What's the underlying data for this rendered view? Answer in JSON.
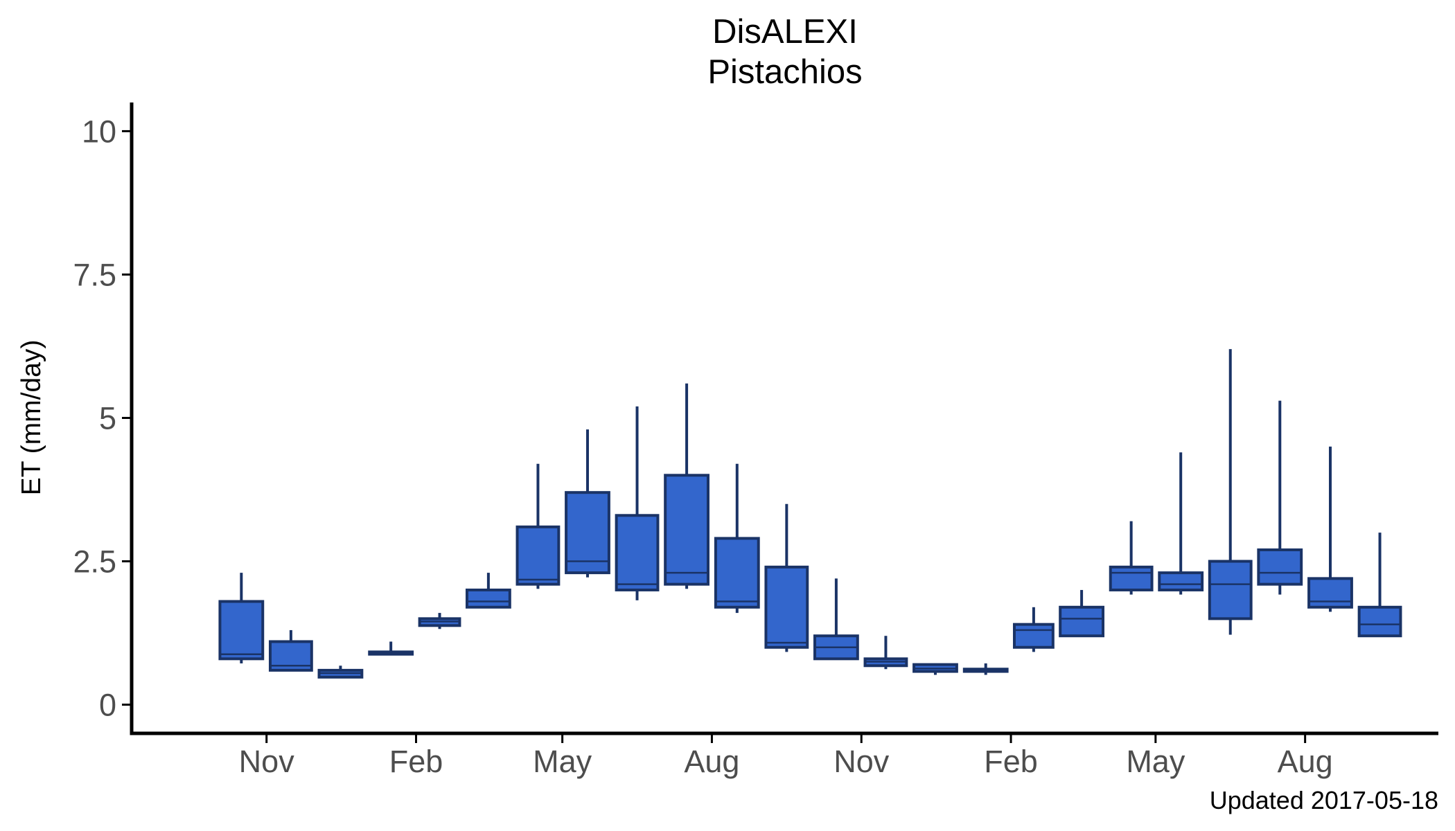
{
  "chart_data": {
    "type": "boxplot",
    "title": "DisALEXI",
    "subtitle": "Pistachios",
    "ylabel": "ET (mm/day)",
    "xlabel": "",
    "caption": "Updated  2017-05-18",
    "ylim": [
      -0.5,
      10.5
    ],
    "yticks": [
      0,
      2.5,
      5,
      7.5,
      10
    ],
    "ytick_labels": [
      "0",
      "2.5",
      "5",
      "7.5",
      "10"
    ],
    "xlim": [
      "2015-08-10",
      "2017-10-22"
    ],
    "xtick_dates": [
      "2015-11-01",
      "2016-02-01",
      "2016-05-01",
      "2016-08-01",
      "2016-11-01",
      "2017-02-01",
      "2017-05-01",
      "2017-08-01"
    ],
    "xtick_labels": [
      "Nov",
      "Feb",
      "May",
      "Aug",
      "Nov",
      "Feb",
      "May",
      "Aug"
    ],
    "grid": false,
    "legend": "none",
    "colors": {
      "fill": "#3366cc",
      "stroke": "#1a3366"
    },
    "boxes": [
      {
        "month": "2015-10",
        "min": 0.72,
        "q1": 0.8,
        "median": 0.88,
        "q3": 1.8,
        "max": 2.3
      },
      {
        "month": "2015-11",
        "min": 0.6,
        "q1": 0.6,
        "median": 0.68,
        "q3": 1.1,
        "max": 1.3
      },
      {
        "month": "2015-12",
        "min": 0.48,
        "q1": 0.48,
        "median": 0.55,
        "q3": 0.6,
        "max": 0.68
      },
      {
        "month": "2016-01",
        "min": 0.86,
        "q1": 0.88,
        "median": 0.9,
        "q3": 0.92,
        "max": 1.1
      },
      {
        "month": "2016-02",
        "min": 1.32,
        "q1": 1.38,
        "median": 1.45,
        "q3": 1.5,
        "max": 1.6
      },
      {
        "month": "2016-03",
        "min": 1.7,
        "q1": 1.7,
        "median": 1.8,
        "q3": 2.0,
        "max": 2.3
      },
      {
        "month": "2016-04",
        "min": 2.02,
        "q1": 2.1,
        "median": 2.18,
        "q3": 3.1,
        "max": 4.2
      },
      {
        "month": "2016-05",
        "min": 2.22,
        "q1": 2.3,
        "median": 2.5,
        "q3": 3.7,
        "max": 4.8
      },
      {
        "month": "2016-06",
        "min": 1.82,
        "q1": 2.0,
        "median": 2.1,
        "q3": 3.3,
        "max": 5.2
      },
      {
        "month": "2016-07",
        "min": 2.02,
        "q1": 2.1,
        "median": 2.3,
        "q3": 4.0,
        "max": 5.6
      },
      {
        "month": "2016-08",
        "min": 1.6,
        "q1": 1.7,
        "median": 1.8,
        "q3": 2.9,
        "max": 4.2
      },
      {
        "month": "2016-09",
        "min": 0.92,
        "q1": 1.0,
        "median": 1.08,
        "q3": 2.4,
        "max": 3.5
      },
      {
        "month": "2016-10",
        "min": 0.8,
        "q1": 0.8,
        "median": 1.0,
        "q3": 1.2,
        "max": 2.2
      },
      {
        "month": "2016-11",
        "min": 0.62,
        "q1": 0.68,
        "median": 0.75,
        "q3": 0.8,
        "max": 1.2
      },
      {
        "month": "2016-12",
        "min": 0.52,
        "q1": 0.58,
        "median": 0.63,
        "q3": 0.7,
        "max": 0.72
      },
      {
        "month": "2017-01",
        "min": 0.52,
        "q1": 0.58,
        "median": 0.6,
        "q3": 0.62,
        "max": 0.72
      },
      {
        "month": "2017-02",
        "min": 0.92,
        "q1": 1.0,
        "median": 1.3,
        "q3": 1.4,
        "max": 1.7
      },
      {
        "month": "2017-03",
        "min": 1.2,
        "q1": 1.2,
        "median": 1.5,
        "q3": 1.7,
        "max": 2.0
      },
      {
        "month": "2017-04",
        "min": 1.92,
        "q1": 2.0,
        "median": 2.3,
        "q3": 2.4,
        "max": 3.2
      },
      {
        "month": "2017-05",
        "min": 1.92,
        "q1": 2.0,
        "median": 2.1,
        "q3": 2.3,
        "max": 4.4
      },
      {
        "month": "2017-06",
        "min": 1.22,
        "q1": 1.5,
        "median": 2.1,
        "q3": 2.5,
        "max": 6.2
      },
      {
        "month": "2017-07",
        "min": 1.92,
        "q1": 2.1,
        "median": 2.3,
        "q3": 2.7,
        "max": 5.3
      },
      {
        "month": "2017-08",
        "min": 1.62,
        "q1": 1.7,
        "median": 1.8,
        "q3": 2.2,
        "max": 4.5
      },
      {
        "month": "2017-09",
        "min": 1.2,
        "q1": 1.2,
        "median": 1.4,
        "q3": 1.7,
        "max": 3.0
      }
    ]
  }
}
